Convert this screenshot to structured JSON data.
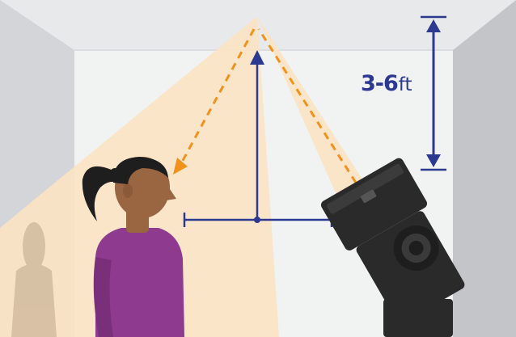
{
  "diagram": {
    "distance_label": {
      "value": "3-6",
      "unit": "ft"
    },
    "colors": {
      "back_wall": "#f1f2f2",
      "ceiling": "#e8e9eb",
      "left_wall": "#d4d5d8",
      "right_wall": "#c3c5c9",
      "light_cone": "#fbe3c4",
      "bounce_arrow": "#f0921c",
      "dimension": "#2b3990",
      "shirt": "#8e3a8f",
      "skin": "#9a6541",
      "hair": "#1e1e1e",
      "flash": "#2a2a2a"
    },
    "icons": {
      "person": "person-silhouette",
      "flash": "speedlight-flash",
      "shadow": "person-shadow"
    }
  }
}
